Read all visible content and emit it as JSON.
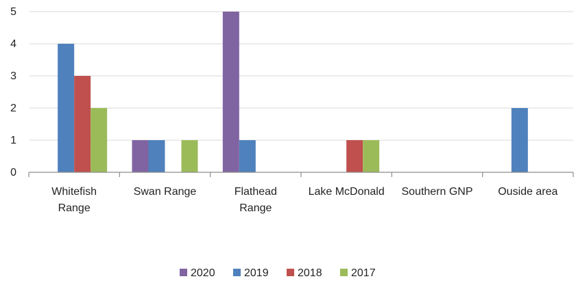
{
  "chart_data": {
    "type": "bar",
    "categories": [
      [
        "Whitefish",
        "Range"
      ],
      [
        "Swan Range"
      ],
      [
        "Flathead",
        "Range"
      ],
      [
        "Lake McDonald"
      ],
      [
        "Southern GNP"
      ],
      [
        "Ouside area"
      ]
    ],
    "series": [
      {
        "name": "2020",
        "color": "#8064a2",
        "values": [
          0,
          1,
          5,
          0,
          0,
          0
        ]
      },
      {
        "name": "2019",
        "color": "#4f81bd",
        "values": [
          4,
          1,
          1,
          0,
          0,
          2
        ]
      },
      {
        "name": "2018",
        "color": "#c0504d",
        "values": [
          3,
          0,
          0,
          1,
          0,
          0
        ]
      },
      {
        "name": "2017",
        "color": "#9bbb59",
        "values": [
          2,
          1,
          0,
          1,
          0,
          0
        ]
      }
    ],
    "ylim": [
      0,
      5
    ],
    "yticks": [
      0,
      1,
      2,
      3,
      4,
      5
    ],
    "grid": true,
    "legend_position": "bottom"
  }
}
